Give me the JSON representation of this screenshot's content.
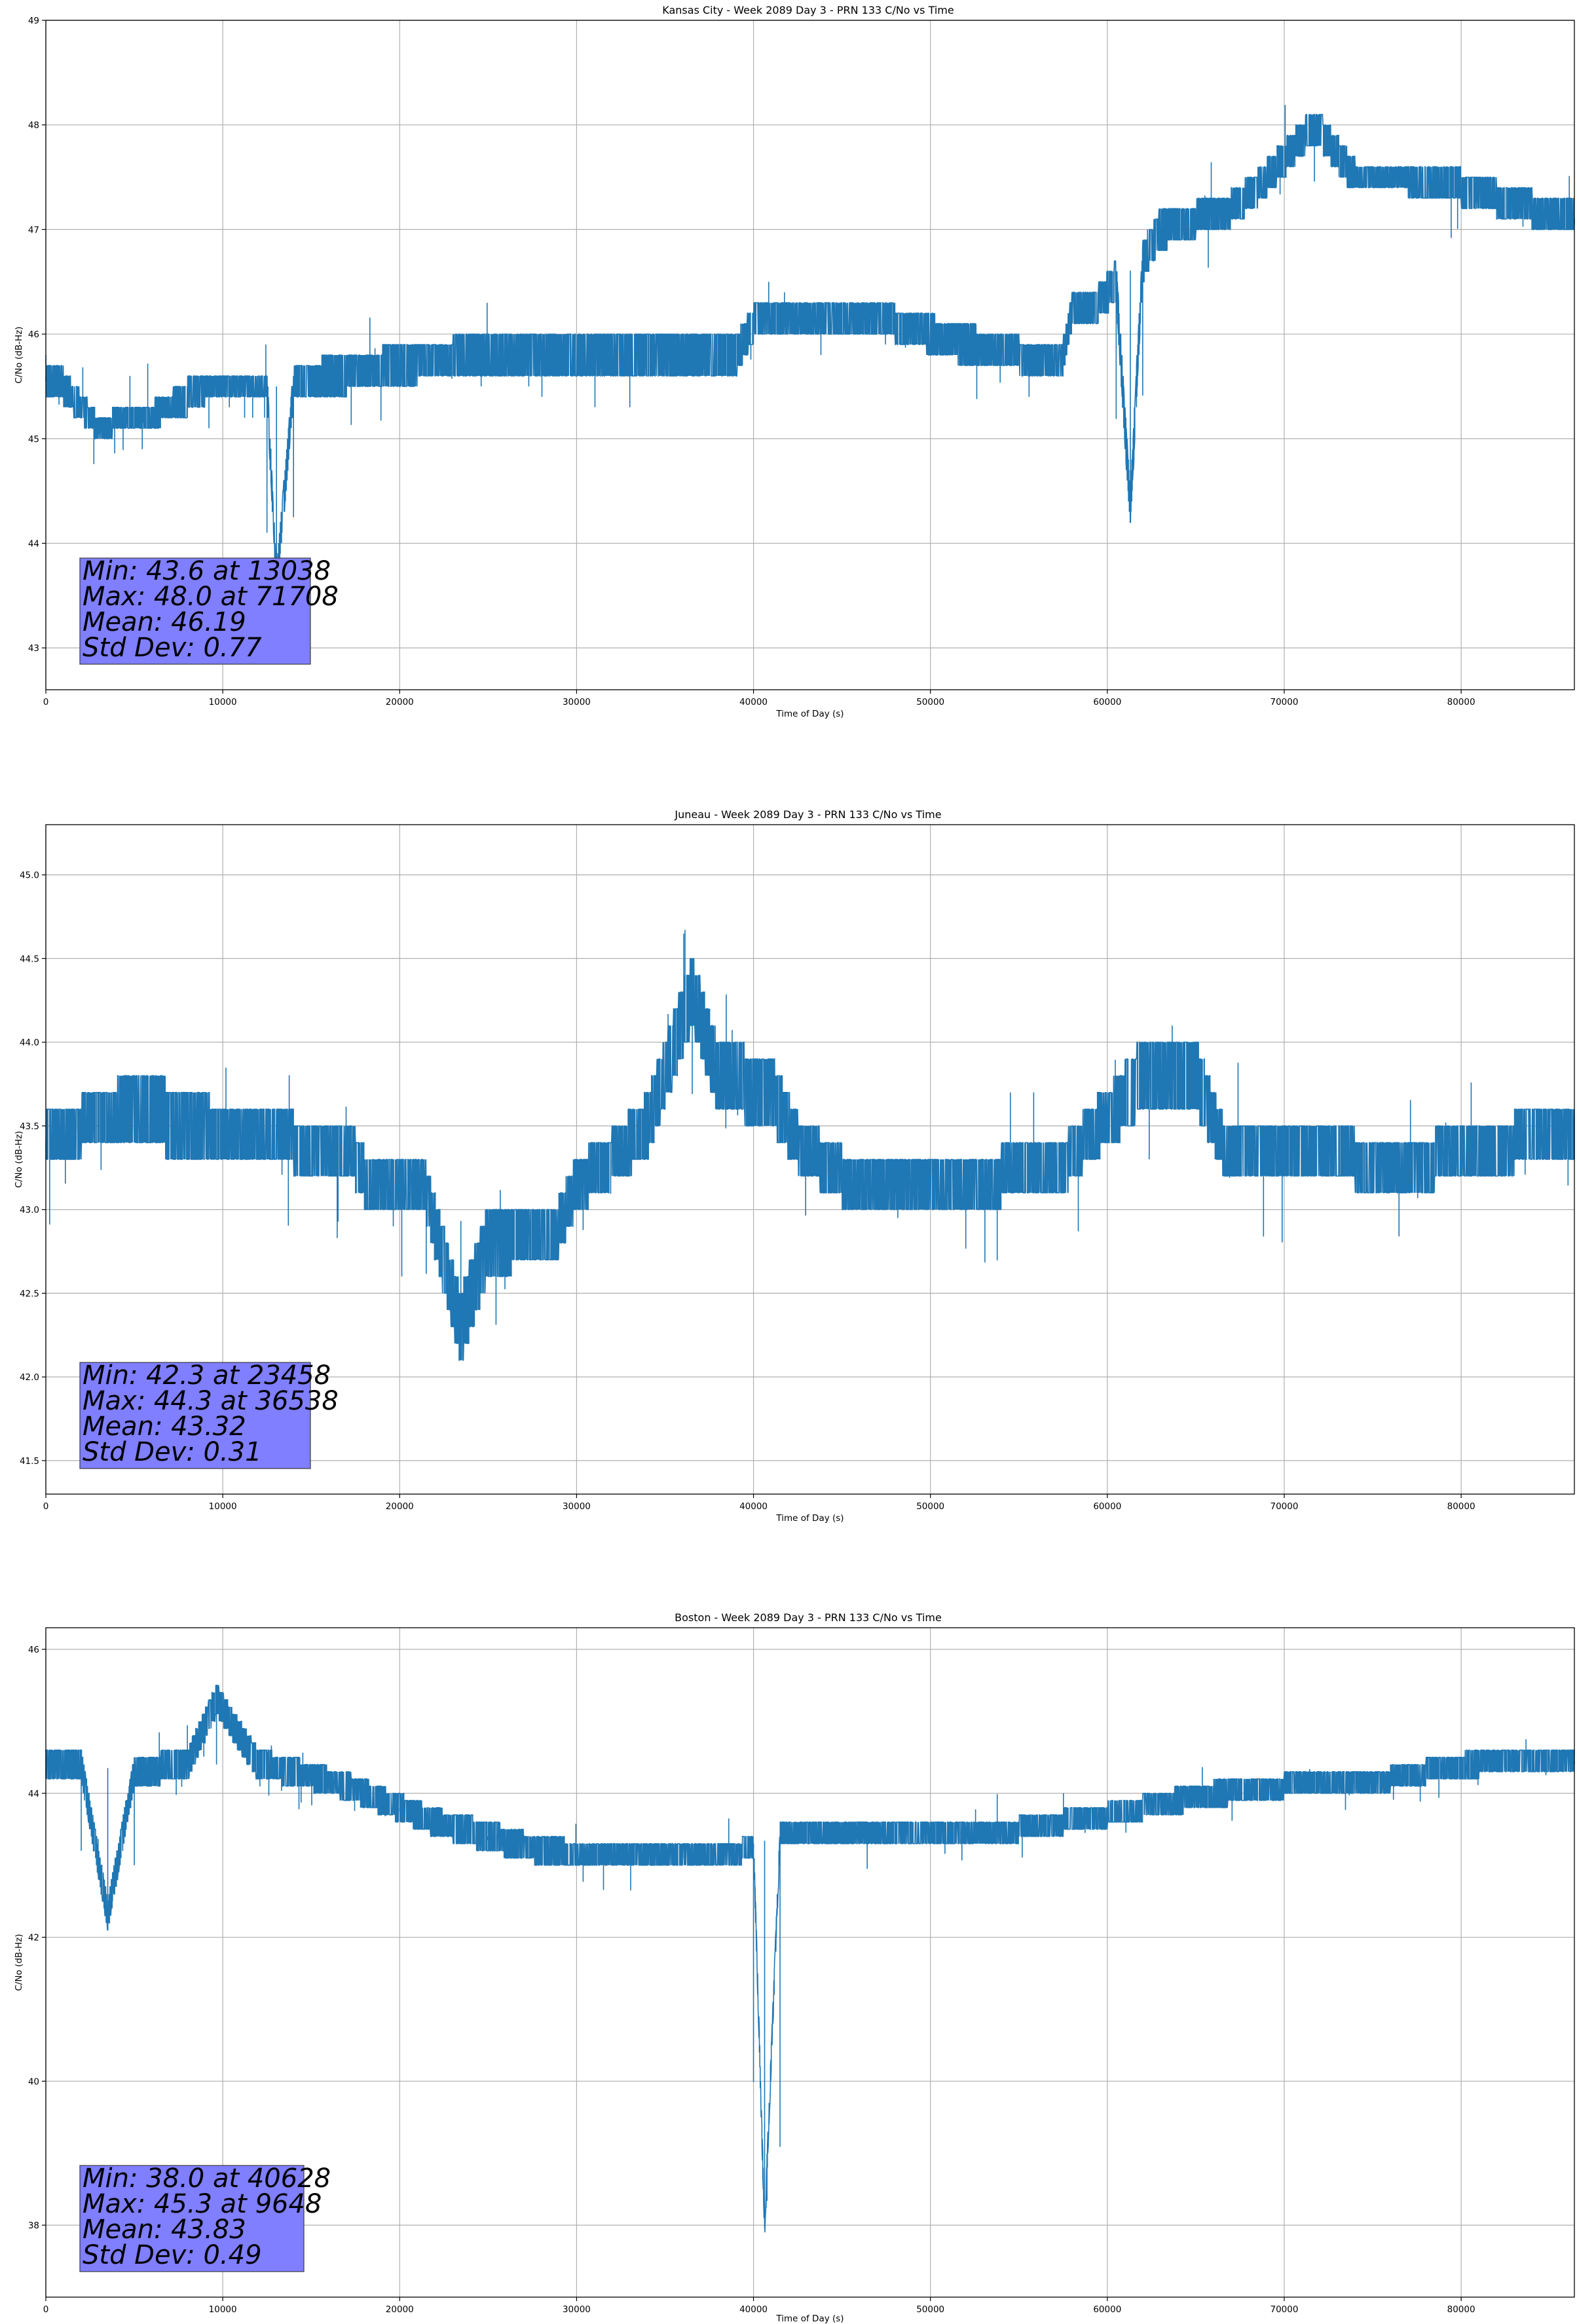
{
  "chart_data": [
    {
      "type": "line",
      "title": "Kansas City - Week 2089 Day 3 - PRN 133 C/No vs Time",
      "xlabel": "Time of Day (s)",
      "ylabel": "C/No (dB-Hz)",
      "xlim": [
        0,
        86400
      ],
      "ylim": [
        42.6,
        49
      ],
      "xticks": [
        0,
        10000,
        20000,
        30000,
        40000,
        50000,
        60000,
        70000,
        80000
      ],
      "xtick_labels": [
        "0",
        "10000",
        "20000",
        "30000",
        "40000",
        "50000",
        "60000",
        "70000",
        "80000"
      ],
      "yticks": [
        43,
        44,
        45,
        46,
        47,
        48,
        49
      ],
      "ytick_labels": [
        "43",
        "44",
        "45",
        "46",
        "47",
        "48",
        "49"
      ],
      "grid": true,
      "series": [
        {
          "name": "C/No",
          "x": [
            0,
            1000,
            2000,
            3000,
            4500,
            5500,
            7000,
            8000,
            9000,
            11000,
            12500,
            13038,
            14000,
            16000,
            20000,
            24000,
            28000,
            32000,
            36000,
            39000,
            40000,
            44000,
            48000,
            52000,
            55000,
            57500,
            58000,
            59500,
            60500,
            61300,
            62000,
            63000,
            65000,
            67000,
            68500,
            71708,
            74000,
            77000,
            80000,
            82000,
            84000,
            86400
          ],
          "y": [
            45.6,
            45.5,
            45.3,
            45.1,
            45.2,
            45.2,
            45.3,
            45.4,
            45.5,
            45.5,
            45.5,
            43.6,
            45.5,
            45.6,
            45.7,
            45.8,
            45.8,
            45.8,
            45.8,
            45.8,
            46.1,
            46.1,
            46.1,
            45.9,
            45.8,
            45.8,
            46.2,
            46.3,
            46.5,
            44.3,
            46.7,
            47.0,
            47.1,
            47.2,
            47.4,
            48.0,
            47.5,
            47.5,
            47.4,
            47.3,
            47.2,
            47.1
          ],
          "band": [
            0.3,
            0.3,
            0.25,
            0.2,
            0.2,
            0.2,
            0.25,
            0.3,
            0.3,
            0.3,
            0.3,
            0.3,
            0.3,
            0.35,
            0.35,
            0.35,
            0.3,
            0.35,
            0.3,
            0.35,
            0.3,
            0.3,
            0.3,
            0.35,
            0.3,
            0.3,
            0.3,
            0.3,
            0.35,
            0.35,
            0.35,
            0.35,
            0.3,
            0.3,
            0.3,
            0.3,
            0.3,
            0.3,
            0.3,
            0.3,
            0.3,
            0.3
          ]
        }
      ],
      "annotation": [
        "Min: 43.6 at 13038",
        "Max: 48.0 at 71708",
        "Mean: 46.19",
        "Std Dev: 0.77"
      ]
    },
    {
      "type": "line",
      "title": "Juneau - Week 2089 Day 3 - PRN 133 C/No vs Time",
      "xlabel": "Time of Day (s)",
      "ylabel": "C/No (dB-Hz)",
      "xlim": [
        0,
        86400
      ],
      "ylim": [
        41.3,
        45.3
      ],
      "xticks": [
        0,
        10000,
        20000,
        30000,
        40000,
        50000,
        60000,
        70000,
        80000
      ],
      "xtick_labels": [
        "0",
        "10000",
        "20000",
        "30000",
        "40000",
        "50000",
        "60000",
        "70000",
        "80000"
      ],
      "yticks": [
        41.5,
        42.0,
        42.5,
        43.0,
        43.5,
        44.0,
        44.5,
        45.0
      ],
      "ytick_labels": [
        "41.5",
        "42.0",
        "42.5",
        "43.0",
        "43.5",
        "44.0",
        "44.5",
        "45.0"
      ],
      "grid": true,
      "series": [
        {
          "name": "C/No",
          "x": [
            0,
            2000,
            5000,
            8500,
            10000,
            14000,
            17500,
            18500,
            21500,
            23458,
            25000,
            29000,
            30000,
            32000,
            34000,
            36538,
            38000,
            41000,
            42500,
            45000,
            48000,
            51000,
            54000,
            57000,
            59000,
            60500,
            62000,
            65000,
            66500,
            68500,
            70000,
            73500,
            74500,
            77000,
            80000,
            83000,
            86400
          ],
          "y": [
            43.4,
            43.5,
            43.6,
            43.5,
            43.45,
            43.4,
            43.3,
            43.1,
            43.1,
            42.3,
            42.8,
            42.9,
            43.15,
            43.3,
            43.5,
            44.3,
            43.8,
            43.7,
            43.4,
            43.2,
            43.15,
            43.15,
            43.2,
            43.2,
            43.45,
            43.6,
            43.8,
            43.8,
            43.4,
            43.35,
            43.3,
            43.4,
            43.2,
            43.25,
            43.35,
            43.4,
            43.45
          ],
          "band": [
            0.3,
            0.3,
            0.4,
            0.4,
            0.3,
            0.3,
            0.3,
            0.3,
            0.3,
            0.4,
            0.4,
            0.3,
            0.3,
            0.3,
            0.35,
            0.4,
            0.4,
            0.4,
            0.3,
            0.3,
            0.3,
            0.3,
            0.3,
            0.3,
            0.3,
            0.35,
            0.4,
            0.4,
            0.3,
            0.3,
            0.3,
            0.3,
            0.3,
            0.3,
            0.3,
            0.3,
            0.3
          ]
        }
      ],
      "annotation": [
        "Min: 42.3 at 23458",
        "Max: 44.3 at 36538",
        "Mean: 43.32",
        "Std Dev: 0.31"
      ]
    },
    {
      "type": "line",
      "title": "Boston - Week 2089 Day 3 - PRN 133 C/No vs Time",
      "xlabel": "Time of Day (s)",
      "ylabel": "C/No (dB-Hz)",
      "xlim": [
        0,
        86400
      ],
      "ylim": [
        37,
        46.3
      ],
      "xticks": [
        0,
        10000,
        20000,
        30000,
        40000,
        50000,
        60000,
        70000,
        80000
      ],
      "xtick_labels": [
        "0",
        "10000",
        "20000",
        "30000",
        "40000",
        "50000",
        "60000",
        "70000",
        "80000"
      ],
      "yticks": [
        38,
        40,
        42,
        44,
        46
      ],
      "ytick_labels": [
        "38",
        "40",
        "42",
        "44",
        "46"
      ],
      "grid": true,
      "series": [
        {
          "name": "C/No",
          "x": [
            0,
            2000,
            3500,
            5000,
            8000,
            9648,
            12000,
            14000,
            17000,
            20000,
            22000,
            25000,
            28000,
            32000,
            36000,
            39000,
            40000,
            40628,
            41500,
            45000,
            50000,
            55000,
            60000,
            63000,
            65000,
            68000,
            72000,
            76000,
            79000,
            82000,
            86400
          ],
          "y": [
            44.4,
            44.4,
            42.3,
            44.3,
            44.4,
            45.3,
            44.4,
            44.3,
            44.1,
            43.8,
            43.6,
            43.4,
            43.2,
            43.15,
            43.15,
            43.15,
            43.3,
            38.0,
            43.4,
            43.45,
            43.45,
            43.5,
            43.7,
            43.85,
            43.95,
            44.05,
            44.15,
            44.2,
            44.35,
            44.45,
            44.45
          ],
          "band": [
            0.4,
            0.4,
            0.4,
            0.4,
            0.4,
            0.4,
            0.4,
            0.35,
            0.35,
            0.35,
            0.35,
            0.4,
            0.35,
            0.3,
            0.3,
            0.3,
            0.3,
            0.3,
            0.3,
            0.3,
            0.3,
            0.3,
            0.3,
            0.3,
            0.35,
            0.3,
            0.3,
            0.3,
            0.3,
            0.35,
            0.35
          ]
        }
      ],
      "annotation": [
        "Min: 38.0 at 40628",
        "Max: 45.3 at 9648",
        "Mean: 43.83",
        "Std Dev: 0.49"
      ]
    }
  ]
}
